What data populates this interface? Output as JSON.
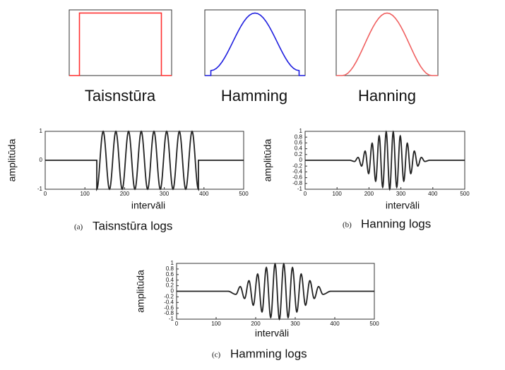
{
  "chart_data": [
    {
      "type": "line",
      "title": "Taisnstūra",
      "xlim": [
        0,
        1000
      ],
      "ylim": [
        0,
        1.05
      ],
      "series": [
        {
          "color": "#ff3030",
          "x": [
            0,
            100,
            100,
            900,
            900,
            1000
          ],
          "values": [
            0,
            0,
            1,
            1,
            0,
            0
          ]
        }
      ]
    },
    {
      "type": "line",
      "title": "Hamming",
      "xlim": [
        0,
        1000
      ],
      "ylim": [
        0,
        1.05
      ],
      "series": [
        {
          "color": "#1f1fdf",
          "x": [
            0,
            60,
            60,
            500,
            940,
            940,
            1000
          ],
          "values": [
            0,
            0,
            0.08,
            1,
            0.08,
            0,
            0
          ]
        }
      ]
    },
    {
      "type": "line",
      "title": "Hanning",
      "xlim": [
        0,
        1000
      ],
      "ylim": [
        0,
        1.05
      ],
      "series": [
        {
          "color": "#f06060",
          "x": [
            0,
            60,
            500,
            940,
            1000
          ],
          "values": [
            0,
            0,
            1,
            0,
            0
          ]
        }
      ]
    },
    {
      "type": "line",
      "xlabel": "intervāli",
      "ylabel": "amplitūda",
      "caption_letter": "(a)",
      "caption": "Taisnstūra logs",
      "xlim": [
        0,
        500
      ],
      "ylim": [
        -1,
        1
      ],
      "xticks": [
        0,
        100,
        200,
        300,
        400,
        500
      ],
      "yticks": [
        -1,
        0,
        1
      ],
      "series": [
        {
          "color": "#222222",
          "x": [
            0,
            130,
            130,
            146,
            162,
            178,
            194,
            210,
            226,
            242,
            258,
            274,
            290,
            306,
            322,
            338,
            354,
            370,
            386,
            386,
            500
          ],
          "values": [
            0,
            0,
            -1,
            1,
            -1,
            1,
            -1,
            1,
            -1,
            1,
            -1,
            1,
            -1,
            1,
            -1,
            1,
            -1,
            1,
            -1,
            0,
            0
          ]
        }
      ]
    },
    {
      "type": "line",
      "xlabel": "intervāli",
      "ylabel": "amplitūda",
      "caption_letter": "(b)",
      "caption": "Hanning logs",
      "xlim": [
        0,
        500
      ],
      "ylim": [
        -1,
        1
      ],
      "xticks": [
        0,
        100,
        200,
        300,
        400,
        500
      ],
      "yticks": [
        -1,
        -0.8,
        -0.6,
        -0.4,
        -0.2,
        0,
        0.2,
        0.4,
        0.6,
        0.8,
        1
      ],
      "series": [
        {
          "color": "#222222",
          "x": [
            0,
            140,
            155,
            166,
            177,
            188,
            199,
            210,
            221,
            232,
            243,
            254,
            265,
            276,
            287,
            298,
            309,
            320,
            331,
            342,
            353,
            364,
            375,
            390,
            500
          ],
          "values": [
            0,
            0,
            -0.04,
            0.1,
            -0.2,
            0.32,
            -0.46,
            0.59,
            -0.72,
            0.84,
            -0.93,
            0.98,
            -1,
            0.98,
            -0.93,
            0.84,
            -0.72,
            0.59,
            -0.46,
            0.32,
            -0.2,
            0.1,
            -0.04,
            0,
            0
          ]
        }
      ]
    },
    {
      "type": "line",
      "xlabel": "intervāli",
      "ylabel": "amplitūda",
      "caption_letter": "(c)",
      "caption": "Hamming logs",
      "xlim": [
        0,
        500
      ],
      "ylim": [
        -1,
        1
      ],
      "xticks": [
        0,
        100,
        200,
        300,
        400,
        500
      ],
      "yticks": [
        -1,
        -0.8,
        -0.6,
        -0.4,
        -0.2,
        0,
        0.2,
        0.4,
        0.6,
        0.8,
        1
      ],
      "series": [
        {
          "color": "#222222",
          "x": [
            0,
            130,
            150,
            161,
            172,
            183,
            194,
            205,
            216,
            227,
            238,
            249,
            260,
            271,
            282,
            293,
            304,
            315,
            326,
            337,
            348,
            359,
            370,
            390,
            500
          ],
          "values": [
            0,
            0,
            -0.11,
            0.17,
            -0.26,
            0.38,
            -0.5,
            0.62,
            -0.74,
            0.85,
            -0.94,
            0.98,
            -1,
            0.98,
            -0.94,
            0.85,
            -0.74,
            0.62,
            -0.5,
            0.38,
            -0.26,
            0.17,
            -0.11,
            0,
            0
          ]
        }
      ]
    }
  ]
}
